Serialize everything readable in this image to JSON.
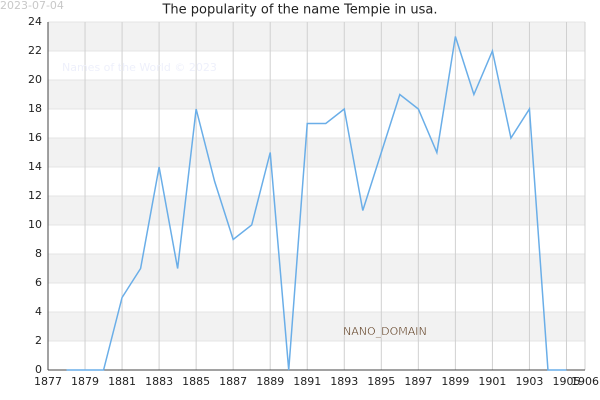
{
  "chart_data": {
    "type": "line",
    "title": "The popularity of the name Tempie in usa.",
    "annotations": [
      "2023-07-04",
      "Names of the World © 2023",
      "NANO_DOMAIN"
    ],
    "x": [
      1878,
      1879,
      1880,
      1881,
      1882,
      1883,
      1884,
      1885,
      1886,
      1887,
      1888,
      1889,
      1890,
      1891,
      1892,
      1893,
      1894,
      1895,
      1896,
      1897,
      1898,
      1899,
      1900,
      1901,
      1902,
      1903,
      1904,
      1905
    ],
    "series": [
      {
        "name": "Tempie",
        "color": "#6aaee8",
        "values": [
          0,
          0,
          0,
          5,
          7,
          14,
          7,
          18,
          13,
          9,
          10,
          15,
          0,
          17,
          17,
          18,
          11,
          15,
          19,
          18,
          15,
          23,
          19,
          22,
          16,
          18,
          0,
          0
        ]
      }
    ],
    "xlim": [
      1877,
      1906
    ],
    "xticks": [
      1877,
      1879,
      1881,
      1883,
      1885,
      1887,
      1889,
      1891,
      1893,
      1895,
      1897,
      1899,
      1901,
      1903,
      1905,
      1906
    ],
    "ylim": [
      0,
      24
    ],
    "yticks": [
      0,
      2,
      4,
      6,
      8,
      10,
      12,
      14,
      16,
      18,
      20,
      22,
      24
    ],
    "grid": true
  }
}
